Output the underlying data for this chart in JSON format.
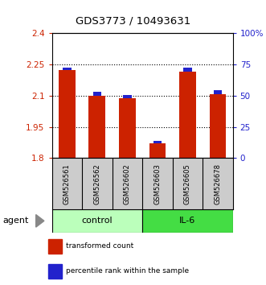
{
  "title": "GDS3773 / 10493631",
  "samples": [
    "GSM526561",
    "GSM526562",
    "GSM526602",
    "GSM526603",
    "GSM526605",
    "GSM526678"
  ],
  "red_values": [
    2.22,
    2.1,
    2.087,
    1.872,
    2.215,
    2.105
  ],
  "blue_values_pct": [
    2.5,
    3.0,
    2.5,
    1.5,
    3.0,
    3.5
  ],
  "ylim_left": [
    1.8,
    2.4
  ],
  "ylim_right": [
    0,
    100
  ],
  "yticks_left": [
    1.8,
    1.95,
    2.1,
    2.25,
    2.4
  ],
  "ytick_labels_left": [
    "1.8",
    "1.95",
    "2.1",
    "2.25",
    "2.4"
  ],
  "yticks_right": [
    0,
    25,
    50,
    75,
    100
  ],
  "ytick_labels_right": [
    "0",
    "25",
    "50",
    "75",
    "100%"
  ],
  "groups": [
    {
      "label": "control",
      "indices": [
        0,
        1,
        2
      ],
      "color": "#bbffbb"
    },
    {
      "label": "IL-6",
      "indices": [
        3,
        4,
        5
      ],
      "color": "#44dd44"
    }
  ],
  "red_color": "#cc2200",
  "blue_color": "#2222cc",
  "bar_width": 0.55,
  "blue_bar_width": 0.28,
  "grid_lines_at": [
    1.95,
    2.1,
    2.25
  ],
  "agent_label": "agent",
  "sample_bg_color": "#cccccc",
  "legend_items": [
    {
      "color": "#cc2200",
      "label": "transformed count"
    },
    {
      "color": "#2222cc",
      "label": "percentile rank within the sample"
    }
  ]
}
